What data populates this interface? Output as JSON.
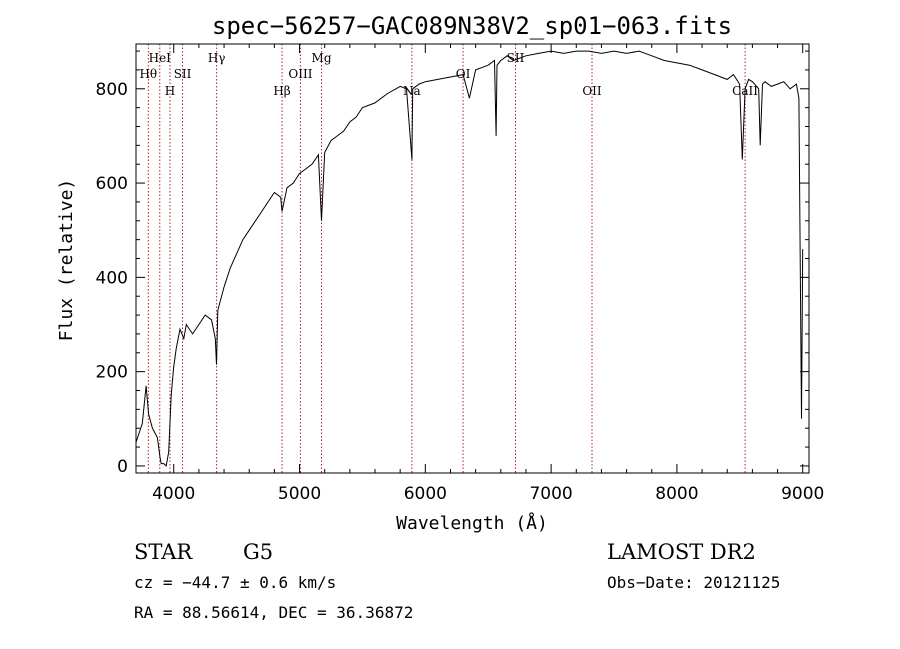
{
  "info": {
    "object_class": "STAR",
    "subclass": "G5",
    "survey": "LAMOST DR2",
    "redshift_line": "cz = −44.7 ± 0.6 km/s",
    "obs_date_line": "Obs−Date: 20121125",
    "coords_line": "RA =  88.56614, DEC =  36.36872"
  },
  "chart_data": {
    "type": "line",
    "title": "spec−56257−GAC089N38V2_sp01−063.fits",
    "xlabel": "Wavelength (Å)",
    "ylabel": "Flux (relative)",
    "xlim": [
      3700,
      9050
    ],
    "ylim": [
      -15,
      895
    ],
    "x_ticks": [
      4000,
      5000,
      6000,
      7000,
      8000,
      9000
    ],
    "y_ticks": [
      0,
      200,
      400,
      600,
      800
    ],
    "grid": false,
    "legend": "none",
    "line_color": "#000000",
    "marker_color": "#b22222",
    "spectral_lines": [
      {
        "label": "Hθ",
        "wavelength": 3798,
        "row": 3
      },
      {
        "label": "HeI",
        "wavelength": 3889,
        "row": 1
      },
      {
        "label": "H",
        "wavelength": 3970,
        "row": 4
      },
      {
        "label": "SII",
        "wavelength": 4070,
        "row": 3
      },
      {
        "label": "Hγ",
        "wavelength": 4341,
        "row": 1
      },
      {
        "label": "Hβ",
        "wavelength": 4861,
        "row": 4
      },
      {
        "label": "OIII",
        "wavelength": 5007,
        "row": 2
      },
      {
        "label": "Mg",
        "wavelength": 5175,
        "row": 1
      },
      {
        "label": "Na",
        "wavelength": 5893,
        "row": 4
      },
      {
        "label": "OI",
        "wavelength": 6300,
        "row": 2
      },
      {
        "label": "SII",
        "wavelength": 6717,
        "row": 1
      },
      {
        "label": "OII",
        "wavelength": 7325,
        "row": 4
      },
      {
        "label": "CaII",
        "wavelength": 8542,
        "row": 4
      }
    ],
    "series": [
      {
        "x": [
          3700,
          3750,
          3780,
          3800,
          3830,
          3850,
          3870,
          3890,
          3900,
          3920,
          3940,
          3960,
          3980,
          4000,
          4020,
          4050,
          4080,
          4100,
          4150,
          4200,
          4250,
          4300,
          4330,
          4340,
          4350,
          4400,
          4450,
          4500,
          4550,
          4600,
          4650,
          4700,
          4750,
          4800,
          4850,
          4861,
          4900,
          4950,
          5000,
          5050,
          5100,
          5150,
          5175,
          5200,
          5250,
          5300,
          5350,
          5400,
          5450,
          5500,
          5600,
          5700,
          5800,
          5850,
          5893,
          5900,
          5950,
          6000,
          6100,
          6200,
          6300,
          6350,
          6400,
          6500,
          6550,
          6563,
          6570,
          6600,
          6650,
          6700,
          6800,
          6900,
          7000,
          7100,
          7200,
          7300,
          7400,
          7500,
          7600,
          7700,
          7800,
          7900,
          8000,
          8100,
          8200,
          8300,
          8400,
          8450,
          8498,
          8520,
          8542,
          8570,
          8600,
          8650,
          8662,
          8680,
          8700,
          8750,
          8800,
          8850,
          8900,
          8950,
          8970,
          8990,
          9000
        ],
        "y": [
          50,
          90,
          170,
          110,
          80,
          70,
          60,
          20,
          5,
          5,
          0,
          30,
          150,
          210,
          250,
          290,
          270,
          300,
          280,
          300,
          320,
          310,
          270,
          215,
          330,
          380,
          420,
          450,
          480,
          500,
          520,
          540,
          560,
          580,
          570,
          540,
          590,
          600,
          620,
          630,
          640,
          660,
          520,
          665,
          690,
          700,
          710,
          730,
          740,
          760,
          770,
          790,
          805,
          800,
          650,
          800,
          810,
          815,
          820,
          825,
          830,
          780,
          840,
          850,
          860,
          700,
          850,
          860,
          870,
          860,
          870,
          875,
          880,
          875,
          880,
          880,
          875,
          880,
          875,
          880,
          870,
          860,
          855,
          850,
          840,
          830,
          820,
          830,
          810,
          650,
          800,
          820,
          815,
          800,
          680,
          810,
          815,
          805,
          810,
          815,
          800,
          810,
          780,
          100,
          460
        ]
      }
    ]
  }
}
